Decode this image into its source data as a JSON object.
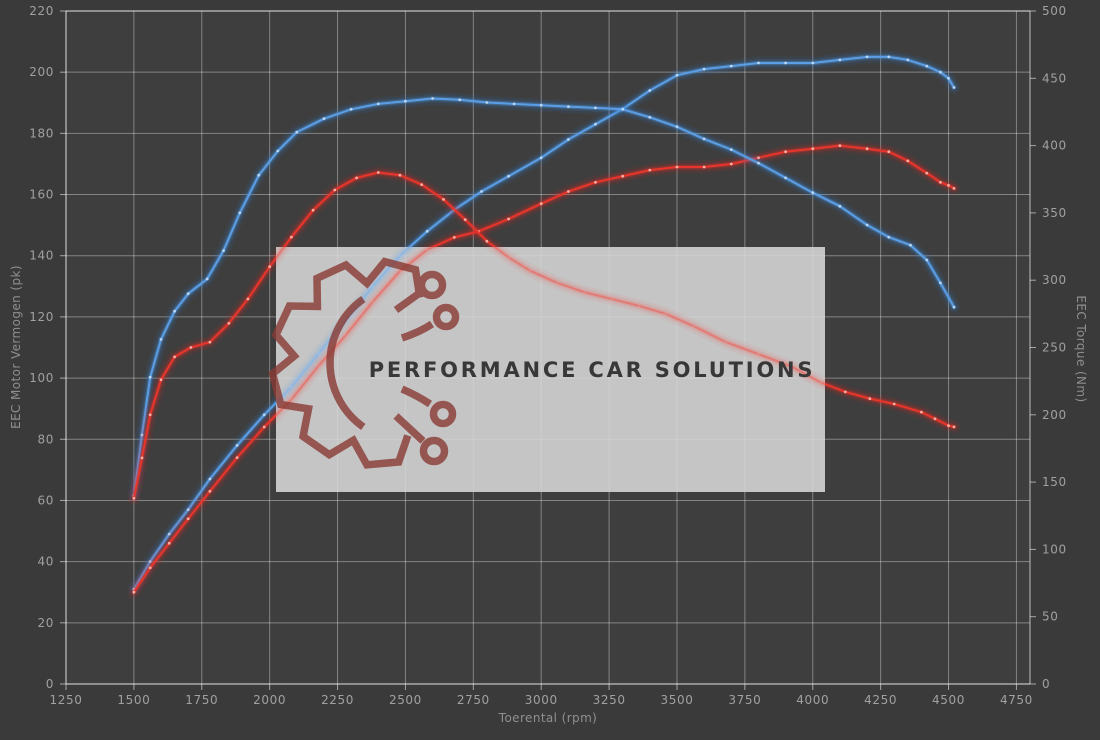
{
  "watermark": {
    "text": "PERFORMANCE CAR SOLUTIONS",
    "logo": "gear-circuit-icon"
  },
  "colors": {
    "background": "#3a3a3a",
    "plot_background": "#3e3e3e",
    "grid": "#c8c8c8",
    "axis_text": "#a0a0a0",
    "blue_curve": "#5b9ee6",
    "red_curve": "#e8352c",
    "watermark_box": "#d9d9d9",
    "watermark_logo": "#8a3a33",
    "watermark_text": "#383838"
  },
  "chart_data": {
    "type": "line",
    "title": "",
    "xlabel": "Toerental (rpm)",
    "ylabel_left": "EEC Motor Vermogen (pk)",
    "ylabel_right": "EEC Torque (Nm)",
    "x_range": [
      1250,
      4800
    ],
    "x_ticks": [
      1250,
      1500,
      1750,
      2000,
      2250,
      2500,
      2750,
      3000,
      3250,
      3500,
      3750,
      4000,
      4250,
      4500,
      4750
    ],
    "y_left_range": [
      0,
      220
    ],
    "y_left_ticks": [
      0,
      20,
      40,
      60,
      80,
      100,
      120,
      140,
      160,
      180,
      200,
      220
    ],
    "y_right_range": [
      0,
      500
    ],
    "y_right_ticks": [
      0,
      50,
      100,
      150,
      200,
      250,
      300,
      350,
      400,
      450,
      500
    ],
    "grid": "on",
    "legend_position": "none",
    "series": [
      {
        "id": "power-blue",
        "name": "power-blue (pk)",
        "axis": "left",
        "color": "#5b9ee6",
        "glow": "#2e7ad6",
        "dot": "#bcd8f8",
        "points": [
          [
            1500,
            31
          ],
          [
            1560,
            40
          ],
          [
            1630,
            49
          ],
          [
            1700,
            57
          ],
          [
            1780,
            67
          ],
          [
            1880,
            78
          ],
          [
            1980,
            88
          ],
          [
            2080,
            97
          ],
          [
            2180,
            108
          ],
          [
            2280,
            119
          ],
          [
            2380,
            130
          ],
          [
            2480,
            140
          ],
          [
            2580,
            148
          ],
          [
            2680,
            155
          ],
          [
            2780,
            161
          ],
          [
            2880,
            166
          ],
          [
            3000,
            172
          ],
          [
            3100,
            178
          ],
          [
            3200,
            183
          ],
          [
            3300,
            188
          ],
          [
            3400,
            194
          ],
          [
            3500,
            199
          ],
          [
            3600,
            201
          ],
          [
            3700,
            202
          ],
          [
            3800,
            203
          ],
          [
            3900,
            203
          ],
          [
            4000,
            203
          ],
          [
            4100,
            204
          ],
          [
            4200,
            205
          ],
          [
            4280,
            205
          ],
          [
            4350,
            204
          ],
          [
            4420,
            202
          ],
          [
            4470,
            200
          ],
          [
            4500,
            198
          ],
          [
            4520,
            195
          ]
        ]
      },
      {
        "id": "power-red",
        "name": "power-red (pk)",
        "axis": "left",
        "color": "#e8352c",
        "glow": "#e0241c",
        "dot": "#ffb3a6",
        "points": [
          [
            1500,
            30
          ],
          [
            1560,
            38
          ],
          [
            1630,
            46
          ],
          [
            1700,
            54
          ],
          [
            1780,
            63
          ],
          [
            1880,
            74
          ],
          [
            1980,
            84
          ],
          [
            2080,
            93
          ],
          [
            2180,
            104
          ],
          [
            2280,
            114
          ],
          [
            2380,
            125
          ],
          [
            2480,
            135
          ],
          [
            2580,
            142
          ],
          [
            2680,
            146
          ],
          [
            2770,
            148
          ],
          [
            2880,
            152
          ],
          [
            3000,
            157
          ],
          [
            3100,
            161
          ],
          [
            3200,
            164
          ],
          [
            3300,
            166
          ],
          [
            3400,
            168
          ],
          [
            3500,
            169
          ],
          [
            3600,
            169
          ],
          [
            3700,
            170
          ],
          [
            3800,
            172
          ],
          [
            3900,
            174
          ],
          [
            4000,
            175
          ],
          [
            4100,
            176
          ],
          [
            4200,
            175
          ],
          [
            4280,
            174
          ],
          [
            4350,
            171
          ],
          [
            4420,
            167
          ],
          [
            4470,
            164
          ],
          [
            4500,
            163
          ],
          [
            4520,
            162
          ]
        ]
      },
      {
        "id": "torque-blue",
        "name": "torque-blue (Nm)",
        "axis": "right",
        "color": "#5b9ee6",
        "glow": "#2e7ad6",
        "dot": "#bcd8f8",
        "points": [
          [
            1500,
            140
          ],
          [
            1530,
            185
          ],
          [
            1560,
            228
          ],
          [
            1600,
            256
          ],
          [
            1650,
            277
          ],
          [
            1700,
            290
          ],
          [
            1770,
            301
          ],
          [
            1830,
            322
          ],
          [
            1890,
            350
          ],
          [
            1960,
            378
          ],
          [
            2030,
            396
          ],
          [
            2100,
            410
          ],
          [
            2200,
            420
          ],
          [
            2300,
            427
          ],
          [
            2400,
            431
          ],
          [
            2500,
            433
          ],
          [
            2600,
            435
          ],
          [
            2700,
            434
          ],
          [
            2800,
            432
          ],
          [
            2900,
            431
          ],
          [
            3000,
            430
          ],
          [
            3100,
            429
          ],
          [
            3200,
            428
          ],
          [
            3300,
            427
          ],
          [
            3400,
            421
          ],
          [
            3500,
            414
          ],
          [
            3600,
            405
          ],
          [
            3700,
            397
          ],
          [
            3800,
            387
          ],
          [
            3900,
            376
          ],
          [
            4000,
            365
          ],
          [
            4100,
            355
          ],
          [
            4200,
            341
          ],
          [
            4280,
            332
          ],
          [
            4360,
            326
          ],
          [
            4420,
            315
          ],
          [
            4470,
            298
          ],
          [
            4520,
            280
          ]
        ]
      },
      {
        "id": "torque-red",
        "name": "torque-red (Nm)",
        "axis": "right",
        "color": "#e8352c",
        "glow": "#e0241c",
        "dot": "#ffb3a6",
        "points": [
          [
            1500,
            138
          ],
          [
            1530,
            168
          ],
          [
            1560,
            200
          ],
          [
            1600,
            226
          ],
          [
            1650,
            243
          ],
          [
            1710,
            250
          ],
          [
            1780,
            254
          ],
          [
            1850,
            268
          ],
          [
            1920,
            286
          ],
          [
            2000,
            310
          ],
          [
            2080,
            332
          ],
          [
            2160,
            352
          ],
          [
            2240,
            367
          ],
          [
            2320,
            376
          ],
          [
            2400,
            380
          ],
          [
            2480,
            378
          ],
          [
            2560,
            371
          ],
          [
            2640,
            360
          ],
          [
            2720,
            345
          ],
          [
            2800,
            329
          ],
          [
            2880,
            317
          ],
          [
            2960,
            307
          ],
          [
            3060,
            298
          ],
          [
            3160,
            291
          ],
          [
            3260,
            286
          ],
          [
            3360,
            281
          ],
          [
            3460,
            275
          ],
          [
            3560,
            266
          ],
          [
            3680,
            254
          ],
          [
            3800,
            245
          ],
          [
            3920,
            236
          ],
          [
            4030,
            224
          ],
          [
            4120,
            217
          ],
          [
            4210,
            212
          ],
          [
            4300,
            208
          ],
          [
            4400,
            202
          ],
          [
            4450,
            197
          ],
          [
            4500,
            192
          ],
          [
            4520,
            191
          ]
        ]
      }
    ]
  }
}
